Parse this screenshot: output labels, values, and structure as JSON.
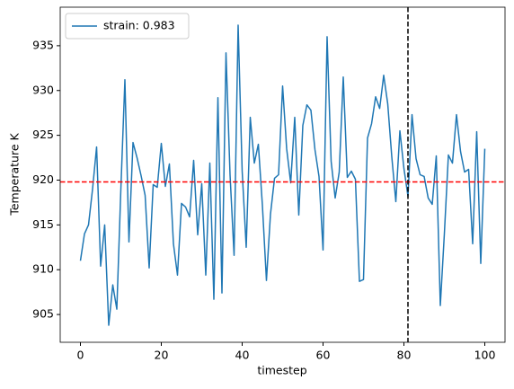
{
  "chart_data": {
    "type": "line",
    "xlabel": "timestep",
    "ylabel": "Temperature K",
    "x": [
      0,
      1,
      2,
      3,
      4,
      5,
      6,
      7,
      8,
      9,
      10,
      11,
      12,
      13,
      14,
      15,
      16,
      17,
      18,
      19,
      20,
      21,
      22,
      23,
      24,
      25,
      26,
      27,
      28,
      29,
      30,
      31,
      32,
      33,
      34,
      35,
      36,
      37,
      38,
      39,
      40,
      41,
      42,
      43,
      44,
      45,
      46,
      47,
      48,
      49,
      50,
      51,
      52,
      53,
      54,
      55,
      56,
      57,
      58,
      59,
      60,
      61,
      62,
      63,
      64,
      65,
      66,
      67,
      68,
      69,
      70,
      71,
      72,
      73,
      74,
      75,
      76,
      77,
      78,
      79,
      80,
      81,
      82,
      83,
      84,
      85,
      86,
      87,
      88,
      89,
      90,
      91,
      92,
      93,
      94,
      95,
      96,
      97,
      98,
      99,
      100
    ],
    "series": [
      {
        "name": "strain: 0.983",
        "color": "#1f77b4",
        "values": [
          911,
          914,
          915,
          919,
          923.7,
          910.4,
          915,
          903.8,
          908.3,
          905.6,
          919,
          931.2,
          913.1,
          924.2,
          922.5,
          920.5,
          918.3,
          910.2,
          919.5,
          919.2,
          924.1,
          919.3,
          921.8,
          912.9,
          909.4,
          917.4,
          917,
          915.9,
          922.2,
          913.9,
          919.6,
          909.4,
          921.9,
          906.7,
          929.2,
          907.4,
          934.2,
          920.6,
          911.6,
          937.3,
          921,
          912.5,
          927,
          921.9,
          924,
          917.2,
          908.8,
          916.2,
          920.2,
          920.6,
          930.5,
          923.5,
          919.7,
          927,
          916.1,
          926.1,
          928.4,
          927.8,
          923.4,
          920.4,
          912.2,
          936,
          922.1,
          918,
          920.9,
          931.5,
          920.3,
          921,
          920.1,
          908.7,
          908.9,
          924.7,
          926.3,
          929.3,
          928,
          931.7,
          928.5,
          922.6,
          917.6,
          925.5,
          921.3,
          918.2,
          927.3,
          922.4,
          920.6,
          920.4,
          918,
          917.3,
          922.7,
          906,
          914,
          922.8,
          921.9,
          927.3,
          923.2,
          920.9,
          921.2,
          912.9,
          925.4,
          910.7,
          923.5
        ]
      }
    ],
    "hline": {
      "value": 919.8,
      "color": "#ff0000"
    },
    "vline": {
      "value": 81,
      "color": "#000000"
    },
    "xlim": [
      -5,
      105
    ],
    "ylim": [
      901.9,
      939.3
    ],
    "xticks": [
      0,
      20,
      40,
      60,
      80,
      100
    ],
    "yticks": [
      905,
      910,
      915,
      920,
      925,
      930,
      935
    ],
    "legend": "upper left",
    "grid": false
  }
}
